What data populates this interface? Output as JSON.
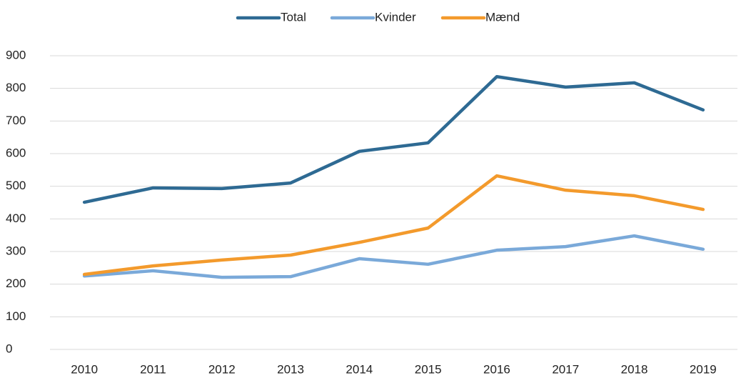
{
  "chart_data": {
    "type": "line",
    "categories": [
      "2010",
      "2011",
      "2012",
      "2013",
      "2014",
      "2015",
      "2016",
      "2017",
      "2018",
      "2019"
    ],
    "series": [
      {
        "name": "Total",
        "color": "#2e6a93",
        "values": [
          451,
          495,
          493,
          510,
          607,
          633,
          836,
          804,
          817,
          734
        ]
      },
      {
        "name": "Kvinder",
        "color": "#7aa9d9",
        "values": [
          225,
          241,
          221,
          223,
          278,
          261,
          304,
          315,
          348,
          307
        ]
      },
      {
        "name": "Mænd",
        "color": "#f39a2c",
        "values": [
          230,
          256,
          274,
          289,
          328,
          372,
          532,
          488,
          471,
          429
        ]
      }
    ],
    "ylim": [
      0,
      900
    ],
    "yticks": [
      0,
      100,
      200,
      300,
      400,
      500,
      600,
      700,
      800,
      900
    ],
    "grid": true,
    "legend": "top"
  }
}
